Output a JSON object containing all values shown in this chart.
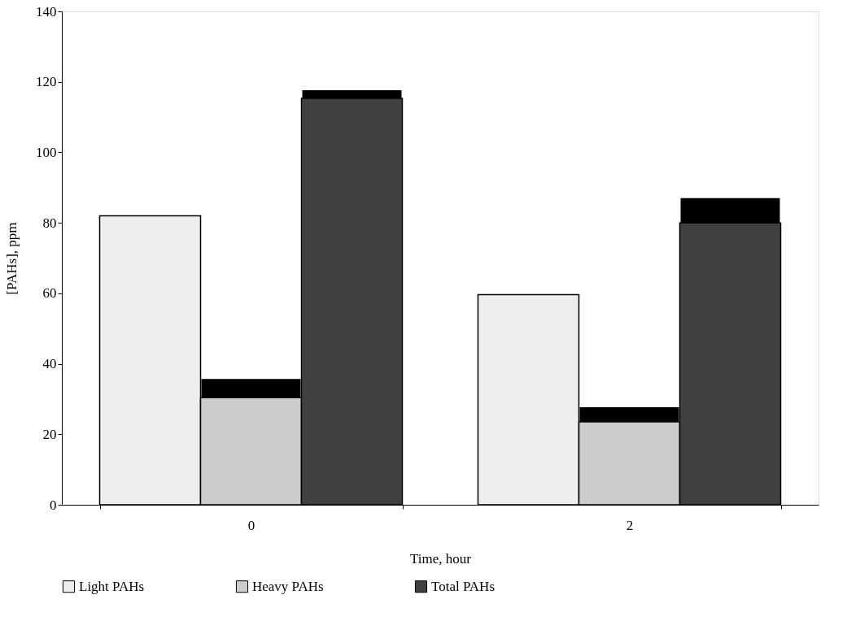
{
  "chart_data": {
    "type": "bar",
    "xlabel": "Time, hour",
    "ylabel": "[PAHs], ppm",
    "categories": [
      "0",
      "2"
    ],
    "series": [
      {
        "name": "Light PAHs",
        "color": "#eeeeee",
        "values": [
          82,
          59.6
        ]
      },
      {
        "name": "Heavy PAHs",
        "color": "#cccccc",
        "values": [
          30.4,
          23.5
        ],
        "errors": [
          [
            30.4,
            35.7
          ],
          [
            23.5,
            27.7
          ]
        ]
      },
      {
        "name": "Total PAHs",
        "color": "#404040",
        "values": [
          115.3,
          80
        ],
        "errors": [
          [
            115.3,
            117.6
          ],
          [
            80,
            87
          ]
        ]
      }
    ],
    "ylim": [
      0,
      140
    ],
    "yticks": [
      0,
      20,
      40,
      60,
      80,
      100,
      120,
      140
    ],
    "grid": false,
    "legend": "bottom"
  }
}
